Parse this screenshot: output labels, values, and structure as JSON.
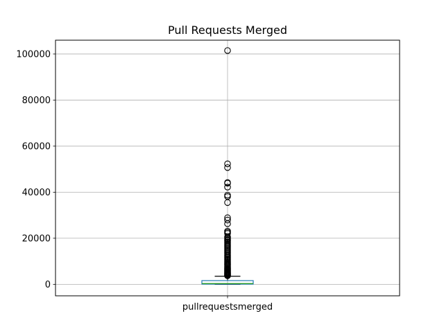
{
  "chart_data": {
    "type": "box",
    "title": "Pull Requests Merged",
    "xlabel": "",
    "ylabel": "",
    "categories": [
      "pullrequestsmerged"
    ],
    "ylim": [
      -5000,
      106000
    ],
    "yticks": [
      0,
      20000,
      40000,
      60000,
      80000,
      100000
    ],
    "ytick_labels": [
      "0",
      "20000",
      "40000",
      "60000",
      "80000",
      "100000"
    ],
    "grid": true,
    "box": {
      "q1": 80,
      "median": 330,
      "q3": 1600,
      "whisker_low": 0,
      "whisker_high": 3500
    },
    "outliers": [
      101500,
      52300,
      50700,
      44200,
      43900,
      42200,
      38700,
      38100,
      35500,
      28900,
      27900,
      26300,
      23100,
      22600,
      22100,
      20600,
      20200,
      19700,
      19300,
      18900,
      18400,
      17900,
      17400,
      16900,
      16500,
      16000,
      15500,
      15000,
      14600,
      14100,
      13600,
      13100,
      12600,
      12100,
      11700,
      11200,
      10800,
      10300,
      9800,
      9400,
      9000,
      8600,
      8200,
      7800,
      7400,
      7000,
      6700,
      6400,
      6100,
      5800,
      5500,
      5200,
      5000,
      4800,
      4600,
      4400,
      4200,
      4000,
      3800,
      3700
    ],
    "colors": {
      "box": "#1f77b4",
      "median": "#2ca02c",
      "whisker": "#000000",
      "outlier": "#000000",
      "grid": "#b0b0b0"
    }
  }
}
